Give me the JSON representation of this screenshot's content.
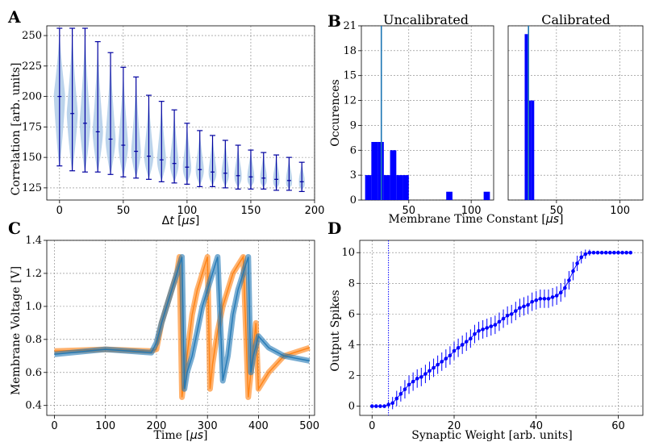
{
  "colors": {
    "violin_fill": "#aac8e6",
    "violin_line": "#0000a0",
    "hist_fill": "#0000ff",
    "hist_vline": "#1f77b4",
    "trace_blue": "#1f77b4",
    "trace_orange": "#ff7f0e",
    "errorbar": "#0000ff",
    "threshold_line": "#0000ff"
  },
  "panels": {
    "A": {
      "letter": "A",
      "xlabel_prefix": "Δ",
      "xlabel_var": "t",
      "xlabel_unit": "μs",
      "ylabel": "Correlation [arb. units]",
      "xticks": [
        "0",
        "50",
        "100",
        "150",
        "200"
      ],
      "yticks": [
        "125",
        "150",
        "175",
        "200",
        "225",
        "250"
      ]
    },
    "B": {
      "letter": "B",
      "title_left": "Uncalibrated",
      "title_right": "Calibrated",
      "ylabel": "Occurences",
      "xlabel_text": "Membrane Time Constant [",
      "xlabel_unit": "μs",
      "xticks": [
        "50",
        "100"
      ],
      "yticks": [
        "0",
        "3",
        "6",
        "9",
        "12",
        "15",
        "18",
        "21"
      ]
    },
    "C": {
      "letter": "C",
      "xlabel_text": "Time [",
      "xlabel_unit": "μs",
      "ylabel": "Membrane Voltage [V]",
      "xticks": [
        "0",
        "100",
        "200",
        "300",
        "400",
        "500"
      ],
      "yticks": [
        "0.4",
        "0.6",
        "0.8",
        "1.0",
        "1.2",
        "1.4"
      ]
    },
    "D": {
      "letter": "D",
      "xlabel": "Synaptic Weight [arb. units]",
      "ylabel": "Output Spikes",
      "xticks": [
        "0",
        "20",
        "40",
        "60"
      ],
      "yticks": [
        "0",
        "2",
        "4",
        "6",
        "8",
        "10"
      ]
    }
  },
  "chart_data": [
    {
      "panel": "A",
      "type": "violin",
      "x": [
        0,
        10,
        20,
        30,
        40,
        50,
        60,
        70,
        80,
        90,
        100,
        110,
        120,
        130,
        140,
        150,
        160,
        170,
        180,
        190
      ],
      "median": [
        200,
        186,
        178,
        171,
        165,
        160,
        155,
        151,
        148,
        145,
        142,
        140,
        138,
        137,
        135,
        134,
        133,
        132,
        131,
        130
      ],
      "min": [
        143,
        139,
        138,
        138,
        136,
        134,
        133,
        132,
        130,
        129,
        128,
        126,
        126,
        125,
        124,
        124,
        124,
        123,
        123,
        122
      ],
      "max": [
        256,
        256,
        256,
        245,
        236,
        224,
        216,
        201,
        196,
        189,
        178,
        172,
        168,
        164,
        160,
        156,
        154,
        152,
        150,
        146
      ],
      "xlim": [
        -10,
        200
      ],
      "ylim": [
        115,
        258
      ],
      "grid": true
    },
    {
      "panel": "B-left",
      "type": "bar",
      "bin_width": 5,
      "bins_left_edge": [
        15,
        20,
        25,
        30,
        35,
        40,
        45,
        80,
        110
      ],
      "values": [
        3,
        7,
        7,
        3,
        6,
        3,
        3,
        1,
        1
      ],
      "vline": 28,
      "xlim": [
        12,
        118
      ],
      "ylim": [
        0,
        21
      ],
      "grid": true
    },
    {
      "panel": "B-right",
      "type": "bar",
      "bin_width": 2.5,
      "bins_left_edge": [
        25,
        27.5,
        30
      ],
      "values": [
        20,
        12,
        12
      ],
      "vline": 28,
      "xlim": [
        12,
        118
      ],
      "ylim": [
        0,
        21
      ],
      "grid": true
    },
    {
      "panel": "C",
      "type": "line",
      "series": [
        {
          "color": "orange",
          "x": [
            0,
            100,
            190,
            200,
            210,
            220,
            230,
            240,
            245,
            250,
            260,
            270,
            280,
            290,
            300,
            305,
            310,
            320,
            330,
            340,
            350,
            360,
            370,
            380,
            385,
            390,
            395,
            400,
            420,
            450,
            500
          ],
          "y": [
            0.73,
            0.74,
            0.73,
            0.74,
            0.9,
            1.0,
            1.1,
            1.2,
            1.3,
            0.45,
            0.7,
            0.95,
            1.1,
            1.2,
            1.3,
            0.5,
            0.65,
            0.85,
            1.0,
            1.1,
            1.2,
            1.25,
            1.3,
            0.45,
            0.6,
            0.75,
            0.9,
            0.5,
            0.6,
            0.7,
            0.75
          ]
        },
        {
          "color": "blue",
          "x": [
            0,
            100,
            190,
            200,
            210,
            220,
            230,
            240,
            250,
            255,
            260,
            270,
            280,
            290,
            300,
            310,
            320,
            330,
            340,
            350,
            360,
            370,
            380,
            385,
            390,
            400,
            420,
            450,
            500
          ],
          "y": [
            0.71,
            0.74,
            0.72,
            0.78,
            0.9,
            1.0,
            1.1,
            1.2,
            1.3,
            0.5,
            0.6,
            0.7,
            0.85,
            1.0,
            1.1,
            1.2,
            1.3,
            0.55,
            0.7,
            0.95,
            1.1,
            1.2,
            1.3,
            0.6,
            0.7,
            0.82,
            0.75,
            0.7,
            0.67
          ]
        }
      ],
      "xlim": [
        -15,
        510
      ],
      "ylim": [
        0.34,
        1.4
      ],
      "grid": true
    },
    {
      "panel": "D",
      "type": "errorbar",
      "x": [
        0,
        1,
        2,
        3,
        4,
        5,
        6,
        7,
        8,
        9,
        10,
        11,
        12,
        13,
        14,
        15,
        16,
        17,
        18,
        19,
        20,
        21,
        22,
        23,
        24,
        25,
        26,
        27,
        28,
        29,
        30,
        31,
        32,
        33,
        34,
        35,
        36,
        37,
        38,
        39,
        40,
        41,
        42,
        43,
        44,
        45,
        46,
        47,
        48,
        49,
        50,
        51,
        52,
        53,
        54,
        55,
        56,
        57,
        58,
        59,
        60,
        61,
        62,
        63
      ],
      "y": [
        0,
        0,
        0,
        0,
        0.1,
        0.2,
        0.5,
        0.8,
        1.1,
        1.4,
        1.6,
        1.8,
        1.9,
        2.1,
        2.3,
        2.5,
        2.7,
        2.9,
        3.1,
        3.3,
        3.6,
        3.8,
        4.0,
        4.2,
        4.4,
        4.7,
        4.9,
        5.0,
        5.1,
        5.2,
        5.3,
        5.5,
        5.7,
        5.9,
        6.0,
        6.2,
        6.4,
        6.5,
        6.6,
        6.8,
        6.9,
        7.0,
        7.0,
        7.0,
        7.1,
        7.2,
        7.4,
        7.7,
        8.2,
        8.8,
        9.3,
        9.7,
        9.9,
        10,
        10,
        10,
        10,
        10,
        10,
        10,
        10,
        10,
        10,
        10
      ],
      "yerr": [
        0,
        0,
        0,
        0,
        0.2,
        0.4,
        0.5,
        0.5,
        0.6,
        0.6,
        0.6,
        0.6,
        0.6,
        0.6,
        0.6,
        0.6,
        0.6,
        0.6,
        0.6,
        0.6,
        0.6,
        0.6,
        0.6,
        0.6,
        0.6,
        0.6,
        0.6,
        0.6,
        0.6,
        0.6,
        0.6,
        0.6,
        0.6,
        0.6,
        0.6,
        0.6,
        0.6,
        0.6,
        0.6,
        0.6,
        0.6,
        0.6,
        0.6,
        0.6,
        0.6,
        0.6,
        0.6,
        0.6,
        0.6,
        0.6,
        0.5,
        0.4,
        0.3,
        0.2,
        0,
        0,
        0,
        0,
        0,
        0,
        0,
        0,
        0,
        0
      ],
      "vline": 4,
      "xlim": [
        -3,
        66
      ],
      "ylim": [
        -0.6,
        10.8
      ],
      "grid": true
    }
  ]
}
